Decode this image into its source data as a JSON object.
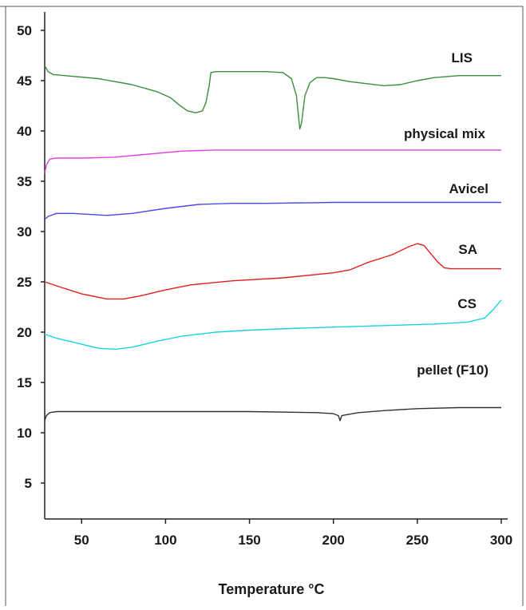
{
  "chart_data": {
    "type": "line",
    "title": "",
    "xlabel": "Temperature °C",
    "ylabel": "",
    "xlim": [
      28,
      300
    ],
    "ylim": [
      2,
      52
    ],
    "x_ticks": [
      50,
      100,
      150,
      200,
      250,
      300
    ],
    "y_ticks": [
      5,
      10,
      15,
      20,
      25,
      30,
      35,
      40,
      45,
      50
    ],
    "grid": false,
    "legend": "none",
    "series": [
      {
        "name": "LIS",
        "color": "#3a8f3a",
        "x": [
          28,
          30,
          33,
          40,
          60,
          80,
          95,
          103,
          108,
          113,
          118,
          122,
          124,
          126,
          127,
          130,
          145,
          160,
          170,
          175,
          178,
          180,
          181,
          183,
          186,
          190,
          195,
          200,
          210,
          220,
          230,
          240,
          250,
          260,
          275,
          290,
          300
        ],
        "y": [
          46.5,
          45.9,
          45.6,
          45.5,
          45.2,
          44.6,
          43.9,
          43.3,
          42.6,
          42.0,
          41.8,
          42.0,
          42.8,
          44.5,
          45.8,
          45.9,
          45.9,
          45.9,
          45.8,
          45.2,
          43.5,
          40.2,
          40.8,
          43.5,
          44.8,
          45.3,
          45.3,
          45.2,
          44.9,
          44.7,
          44.5,
          44.6,
          45.0,
          45.3,
          45.5,
          45.5,
          45.5
        ]
      },
      {
        "name": "physical mix",
        "color": "#e040e0",
        "x": [
          28,
          29,
          31,
          35,
          50,
          70,
          90,
          110,
          130,
          160,
          200,
          250,
          300
        ],
        "y": [
          35.8,
          36.6,
          37.2,
          37.3,
          37.3,
          37.4,
          37.7,
          38.0,
          38.1,
          38.1,
          38.1,
          38.1,
          38.1
        ],
        "label_text": "physical mix"
      },
      {
        "name": "Avicel",
        "color": "#4a4ae6",
        "x": [
          28,
          30,
          35,
          45,
          65,
          80,
          100,
          120,
          140,
          160,
          200,
          250,
          300
        ],
        "y": [
          31.2,
          31.5,
          31.8,
          31.8,
          31.6,
          31.8,
          32.3,
          32.7,
          32.8,
          32.8,
          32.9,
          32.9,
          32.9
        ]
      },
      {
        "name": "SA",
        "color": "#e02020",
        "x": [
          28,
          35,
          50,
          65,
          75,
          85,
          100,
          115,
          140,
          170,
          200,
          210,
          220,
          235,
          245,
          250,
          254,
          258,
          262,
          266,
          270,
          285,
          300
        ],
        "y": [
          25.0,
          24.6,
          23.8,
          23.3,
          23.3,
          23.6,
          24.2,
          24.7,
          25.1,
          25.4,
          25.9,
          26.2,
          26.9,
          27.7,
          28.5,
          28.8,
          28.6,
          27.8,
          27.0,
          26.4,
          26.3,
          26.3,
          26.3
        ]
      },
      {
        "name": "CS",
        "color": "#17d4e0",
        "x": [
          28,
          35,
          45,
          60,
          70,
          80,
          95,
          110,
          130,
          150,
          180,
          220,
          260,
          280,
          290,
          295,
          300
        ],
        "y": [
          19.8,
          19.4,
          19.0,
          18.4,
          18.3,
          18.5,
          19.1,
          19.6,
          20.0,
          20.2,
          20.4,
          20.6,
          20.8,
          21.0,
          21.4,
          22.2,
          23.2
        ]
      },
      {
        "name": "pellet (F10)",
        "color": "#333333",
        "x": [
          28,
          29,
          31,
          35,
          50,
          100,
          150,
          190,
          200,
          203,
          204,
          205,
          208,
          215,
          230,
          250,
          275,
          300
        ],
        "y": [
          11.2,
          11.7,
          12.0,
          12.1,
          12.1,
          12.1,
          12.1,
          12.0,
          11.9,
          11.7,
          11.2,
          11.7,
          11.8,
          12.0,
          12.2,
          12.4,
          12.5,
          12.5
        ]
      }
    ],
    "annotations": [
      "LIS",
      "physical mix",
      "Avicel",
      "SA",
      "CS",
      "pellet (F10)"
    ]
  }
}
